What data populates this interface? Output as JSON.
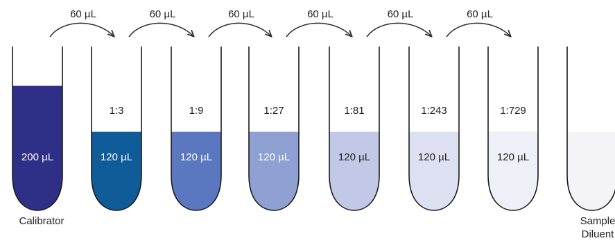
{
  "colors": {
    "outline": "#1a1a1a",
    "arrow": "#2a2a2a",
    "label_dark": "#222222",
    "label_light": "#ffffff"
  },
  "tubes": [
    {
      "ratio": "",
      "volume": "200 µL",
      "fill": "#2e2f87",
      "fill_level": 0.76,
      "label": "Calibrator",
      "volume_text_color": "#ffffff"
    },
    {
      "ratio": "1:3",
      "volume": "120 µL",
      "fill": "#0f5c99",
      "fill_level": 0.48,
      "label": "",
      "volume_text_color": "#ffffff"
    },
    {
      "ratio": "1:9",
      "volume": "120 µL",
      "fill": "#5b77bf",
      "fill_level": 0.48,
      "label": "",
      "volume_text_color": "#ffffff"
    },
    {
      "ratio": "1:27",
      "volume": "120 µL",
      "fill": "#8fa1d2",
      "fill_level": 0.48,
      "label": "",
      "volume_text_color": "#ffffff"
    },
    {
      "ratio": "1:81",
      "volume": "120 µL",
      "fill": "#c2c9e7",
      "fill_level": 0.48,
      "label": "",
      "volume_text_color": "#222222"
    },
    {
      "ratio": "1:243",
      "volume": "120 µL",
      "fill": "#dde0f1",
      "fill_level": 0.48,
      "label": "",
      "volume_text_color": "#222222"
    },
    {
      "ratio": "1:729",
      "volume": "120 µL",
      "fill": "#eeeff7",
      "fill_level": 0.48,
      "label": "",
      "volume_text_color": "#222222"
    },
    {
      "ratio": "",
      "volume": "",
      "fill": "#f3f3f8",
      "fill_level": 0.48,
      "label": "Sample Diluent",
      "label_lines": [
        "Sample",
        "Diluent"
      ],
      "volume_text_color": "#222222"
    }
  ],
  "transfers": [
    {
      "from": 0,
      "to": 1,
      "label": "60 µL"
    },
    {
      "from": 1,
      "to": 2,
      "label": "60 µL"
    },
    {
      "from": 2,
      "to": 3,
      "label": "60 µL"
    },
    {
      "from": 3,
      "to": 4,
      "label": "60 µL"
    },
    {
      "from": 4,
      "to": 5,
      "label": "60 µL"
    },
    {
      "from": 5,
      "to": 6,
      "label": "60 µL"
    }
  ]
}
